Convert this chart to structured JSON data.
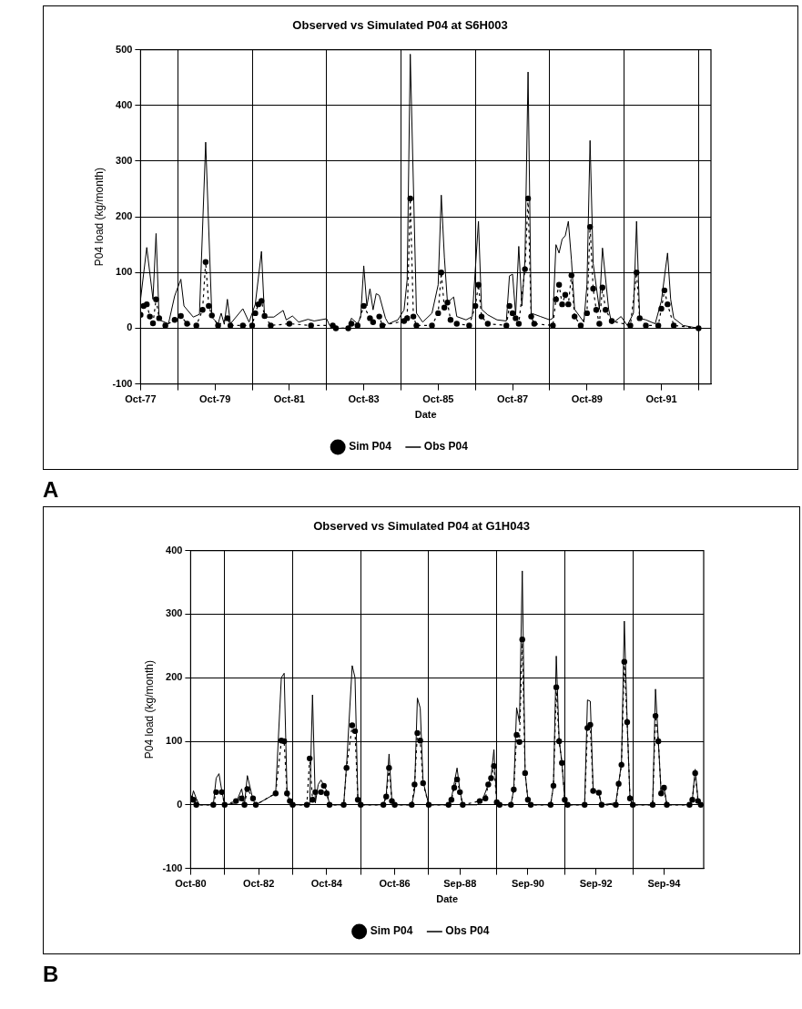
{
  "chart_data": [
    {
      "type": "line",
      "title": "Observed vs Simulated P04 at S6H003",
      "xlabel": "Date",
      "ylabel": "P04 load (kg/month)",
      "annotations": [
        "A"
      ],
      "xlim": [
        "1977-10",
        "1993-02"
      ],
      "xticks": [
        {
          "value": "1977-10",
          "label": "Oct-77"
        },
        {
          "value": "1978-10",
          "label": null
        },
        {
          "value": "1979-10",
          "label": "Oct-79"
        },
        {
          "value": "1980-10",
          "label": null
        },
        {
          "value": "1981-10",
          "label": "Oct-81"
        },
        {
          "value": "1982-10",
          "label": null
        },
        {
          "value": "1983-10",
          "label": "Oct-83"
        },
        {
          "value": "1984-10",
          "label": null
        },
        {
          "value": "1985-10",
          "label": "Oct-85"
        },
        {
          "value": "1986-10",
          "label": null
        },
        {
          "value": "1987-10",
          "label": "Oct-87"
        },
        {
          "value": "1988-10",
          "label": null
        },
        {
          "value": "1989-10",
          "label": "Oct-89"
        },
        {
          "value": "1990-10",
          "label": null
        },
        {
          "value": "1991-10",
          "label": "Oct-91"
        },
        {
          "value": "1992-10",
          "label": null
        }
      ],
      "ylim": [
        -100,
        500
      ],
      "yticks": [
        -100,
        0,
        100,
        200,
        300,
        400,
        500
      ],
      "grid": true,
      "legend": "bottom",
      "series": [
        {
          "name": "Sim P04",
          "color": "#000000",
          "marker": "circle",
          "line_style": "dashed",
          "x": [
            "1977-10",
            "1977-11",
            "1977-12",
            "1978-01",
            "1978-02",
            "1978-03",
            "1978-04",
            "1978-06",
            "1978-09",
            "1978-11",
            "1979-01",
            "1979-04",
            "1979-06",
            "1979-07",
            "1979-08",
            "1979-09",
            "1979-11",
            "1980-02",
            "1980-03",
            "1980-07",
            "1980-10",
            "1980-11",
            "1980-12",
            "1981-01",
            "1981-02",
            "1981-04",
            "1981-10",
            "1982-05",
            "1982-12",
            "1983-01",
            "1983-05",
            "1983-06",
            "1983-08",
            "1983-10",
            "1983-12",
            "1984-01",
            "1984-03",
            "1984-04",
            "1984-11",
            "1984-12",
            "1985-01",
            "1985-02",
            "1985-03",
            "1985-08",
            "1985-10",
            "1985-11",
            "1985-12",
            "1986-01",
            "1986-02",
            "1986-04",
            "1986-08",
            "1986-10",
            "1986-11",
            "1986-12",
            "1987-02",
            "1987-08",
            "1987-09",
            "1987-10",
            "1987-11",
            "1987-12",
            "1988-02",
            "1988-03",
            "1988-04",
            "1988-05",
            "1988-11",
            "1988-12",
            "1989-01",
            "1989-02",
            "1989-03",
            "1989-04",
            "1989-05",
            "1989-06",
            "1989-08",
            "1989-10",
            "1989-11",
            "1989-12",
            "1990-01",
            "1990-02",
            "1990-03",
            "1990-04",
            "1990-06",
            "1990-12",
            "1991-02",
            "1991-03",
            "1991-05",
            "1991-09",
            "1991-10",
            "1991-11",
            "1991-12",
            "1992-02",
            "1992-10"
          ],
          "values": [
            24,
            40,
            43,
            21,
            9,
            52,
            18,
            5,
            15,
            22,
            8,
            5,
            33,
            119,
            40,
            23,
            5,
            18,
            5,
            5,
            5,
            27,
            43,
            49,
            22,
            5,
            8,
            5,
            5,
            0,
            0,
            8,
            5,
            40,
            18,
            11,
            21,
            5,
            13,
            18,
            233,
            21,
            5,
            5,
            27,
            100,
            37,
            46,
            15,
            8,
            5,
            40,
            78,
            21,
            8,
            5,
            40,
            27,
            18,
            8,
            106,
            233,
            21,
            8,
            5,
            52,
            78,
            43,
            60,
            43,
            95,
            21,
            5,
            27,
            182,
            71,
            33,
            8,
            73,
            33,
            13,
            5,
            100,
            18,
            5,
            5,
            35,
            68,
            43,
            5,
            0
          ]
        },
        {
          "name": "Obs P04",
          "color": "#000000",
          "marker": "none",
          "line_style": "solid",
          "x": [
            "1977-10",
            "1977-12",
            "1978-02",
            "1978-03",
            "1978-04",
            "1978-07",
            "1978-09",
            "1978-11",
            "1978-12",
            "1979-03",
            "1979-05",
            "1979-07",
            "1979-09",
            "1979-11",
            "1979-12",
            "1980-01",
            "1980-02",
            "1980-03",
            "1980-07",
            "1980-09",
            "1980-10",
            "1980-11",
            "1981-01",
            "1981-02",
            "1981-05",
            "1981-08",
            "1981-09",
            "1981-11",
            "1982-01",
            "1982-04",
            "1982-06",
            "1982-10",
            "1982-11",
            "1983-01",
            "1983-05",
            "1983-06",
            "1983-08",
            "1983-09",
            "1983-10",
            "1983-11",
            "1983-12",
            "1984-01",
            "1984-02",
            "1984-03",
            "1984-05",
            "1984-06",
            "1984-09",
            "1984-11",
            "1984-12",
            "1985-01",
            "1985-03",
            "1985-05",
            "1985-08",
            "1985-10",
            "1985-11",
            "1985-12",
            "1986-01",
            "1986-03",
            "1986-04",
            "1986-07",
            "1986-09",
            "1986-11",
            "1986-12",
            "1987-02",
            "1987-05",
            "1987-08",
            "1987-09",
            "1987-10",
            "1987-11",
            "1987-12",
            "1988-01",
            "1988-02",
            "1988-03",
            "1988-04",
            "1988-07",
            "1988-10",
            "1988-11",
            "1988-12",
            "1989-01",
            "1989-02",
            "1989-03",
            "1989-04",
            "1989-05",
            "1989-06",
            "1989-09",
            "1989-10",
            "1989-11",
            "1989-12",
            "1990-02",
            "1990-03",
            "1990-05",
            "1990-06",
            "1990-09",
            "1990-11",
            "1991-01",
            "1991-02",
            "1991-03",
            "1991-05",
            "1991-08",
            "1991-10",
            "1991-12",
            "1992-01",
            "1992-02",
            "1992-05",
            "1992-10"
          ],
          "values": [
            52,
            145,
            52,
            170,
            15,
            8,
            58,
            88,
            40,
            20,
            25,
            334,
            20,
            8,
            27,
            7,
            52,
            8,
            35,
            11,
            27,
            43,
            138,
            20,
            20,
            32,
            15,
            22,
            11,
            16,
            13,
            17,
            5,
            0,
            0,
            18,
            8,
            20,
            112,
            40,
            71,
            33,
            62,
            59,
            18,
            8,
            15,
            33,
            87,
            492,
            27,
            11,
            27,
            78,
            239,
            128,
            46,
            56,
            21,
            15,
            21,
            192,
            34,
            24,
            15,
            13,
            94,
            97,
            24,
            147,
            40,
            122,
            460,
            27,
            21,
            15,
            18,
            150,
            135,
            160,
            166,
            192,
            122,
            34,
            11,
            78,
            337,
            116,
            34,
            144,
            34,
            8,
            21,
            5,
            27,
            192,
            18,
            15,
            8,
            49,
            135,
            52,
            18,
            5,
            0
          ]
        }
      ]
    },
    {
      "type": "line",
      "title": "Observed vs Simulated P04 at G1H043",
      "xlabel": "Date",
      "ylabel": "P04 load (kg/month)",
      "annotations": [
        "B"
      ],
      "xlim": [
        "1980-10",
        "1995-11"
      ],
      "xticks": [
        {
          "value": "1980-10",
          "label": "Oct-80"
        },
        {
          "value": "1981-10",
          "label": null
        },
        {
          "value": "1982-10",
          "label": "Oct-82"
        },
        {
          "value": "1983-10",
          "label": null
        },
        {
          "value": "1984-10",
          "label": "Oct-84"
        },
        {
          "value": "1985-10",
          "label": null
        },
        {
          "value": "1986-10",
          "label": "Oct-86"
        },
        {
          "value": "1987-10",
          "label": null
        },
        {
          "value": "1988-09",
          "label": "Sep-88"
        },
        {
          "value": "1989-10",
          "label": null
        },
        {
          "value": "1990-09",
          "label": "Sep-90"
        },
        {
          "value": "1991-10",
          "label": null
        },
        {
          "value": "1992-09",
          "label": "Sep-92"
        },
        {
          "value": "1993-10",
          "label": null
        },
        {
          "value": "1994-09",
          "label": "Sep-94"
        }
      ],
      "ylim": [
        -100,
        400
      ],
      "yticks": [
        -100,
        0,
        100,
        200,
        300,
        400
      ],
      "grid": true,
      "legend": "bottom",
      "series": [
        {
          "name": "Sim P04",
          "color": "#000000",
          "marker": "circle",
          "line_style": "dashed",
          "x": [
            "1980-10",
            "1980-11",
            "1980-12",
            "1981-06",
            "1981-07",
            "1981-09",
            "1981-10",
            "1982-02",
            "1982-04",
            "1982-05",
            "1982-06",
            "1982-08",
            "1982-09",
            "1983-04",
            "1983-06",
            "1983-07",
            "1983-08",
            "1983-09",
            "1983-10",
            "1984-03",
            "1984-04",
            "1984-05",
            "1984-06",
            "1984-08",
            "1984-09",
            "1984-10",
            "1984-11",
            "1985-04",
            "1985-05",
            "1985-07",
            "1985-08",
            "1985-09",
            "1985-10",
            "1986-06",
            "1986-07",
            "1986-08",
            "1986-09",
            "1986-10",
            "1987-04",
            "1987-05",
            "1987-06",
            "1987-07",
            "1987-08",
            "1987-10",
            "1988-05",
            "1988-06",
            "1988-07",
            "1988-08",
            "1988-09",
            "1988-10",
            "1989-04",
            "1989-06",
            "1989-07",
            "1989-08",
            "1989-09",
            "1989-10",
            "1989-11",
            "1990-03",
            "1990-04",
            "1990-05",
            "1990-06",
            "1990-07",
            "1990-08",
            "1990-09",
            "1990-10",
            "1991-05",
            "1991-06",
            "1991-07",
            "1991-08",
            "1991-09",
            "1991-10",
            "1991-11",
            "1992-05",
            "1992-06",
            "1992-07",
            "1992-08",
            "1992-10",
            "1992-11",
            "1993-04",
            "1993-05",
            "1993-06",
            "1993-07",
            "1993-08",
            "1993-09",
            "1993-10",
            "1994-05",
            "1994-06",
            "1994-07",
            "1994-08",
            "1994-09",
            "1994-10",
            "1995-06",
            "1995-07",
            "1995-08",
            "1995-09",
            "1995-10"
          ],
          "values": [
            10,
            8,
            0,
            0,
            20,
            20,
            0,
            6,
            10,
            0,
            25,
            10,
            0,
            18,
            101,
            100,
            18,
            6,
            0,
            0,
            73,
            8,
            20,
            20,
            30,
            18,
            0,
            0,
            58,
            125,
            116,
            8,
            0,
            0,
            13,
            58,
            6,
            0,
            0,
            32,
            113,
            101,
            34,
            0,
            0,
            8,
            27,
            40,
            20,
            0,
            6,
            10,
            32,
            42,
            61,
            4,
            0,
            0,
            24,
            110,
            99,
            260,
            50,
            8,
            0,
            0,
            30,
            185,
            100,
            66,
            8,
            0,
            0,
            121,
            126,
            22,
            19,
            0,
            0,
            33,
            63,
            225,
            130,
            10,
            0,
            0,
            140,
            100,
            18,
            27,
            0,
            0,
            8,
            50,
            6,
            0
          ]
        },
        {
          "name": "Obs P04",
          "color": "#000000",
          "marker": "none",
          "line_style": "solid",
          "x": [
            "1980-10",
            "1980-11",
            "1980-12",
            "1981-01",
            "1981-06",
            "1981-07",
            "1981-08",
            "1981-09",
            "1981-10",
            "1982-02",
            "1982-04",
            "1982-05",
            "1982-06",
            "1982-08",
            "1982-09",
            "1983-04",
            "1983-06",
            "1983-07",
            "1983-08",
            "1983-09",
            "1983-10",
            "1984-04",
            "1984-05",
            "1984-06",
            "1984-07",
            "1984-08",
            "1984-10",
            "1984-11",
            "1985-04",
            "1985-05",
            "1985-07",
            "1985-08",
            "1985-09",
            "1985-10",
            "1986-06",
            "1986-07",
            "1986-08",
            "1986-09",
            "1986-10",
            "1987-04",
            "1987-05",
            "1987-06",
            "1987-07",
            "1987-08",
            "1987-10",
            "1988-05",
            "1988-06",
            "1988-08",
            "1988-09",
            "1988-10",
            "1989-03",
            "1989-05",
            "1989-07",
            "1989-08",
            "1989-09",
            "1989-10",
            "1989-11",
            "1990-03",
            "1990-04",
            "1990-05",
            "1990-06",
            "1990-07",
            "1990-08",
            "1990-09",
            "1990-10",
            "1991-05",
            "1991-06",
            "1991-07",
            "1991-08",
            "1991-09",
            "1991-10",
            "1991-11",
            "1992-05",
            "1992-06",
            "1992-07",
            "1992-08",
            "1992-10",
            "1992-11",
            "1993-04",
            "1993-05",
            "1993-06",
            "1993-07",
            "1993-08",
            "1993-09",
            "1993-10",
            "1994-05",
            "1994-06",
            "1994-07",
            "1994-08",
            "1994-09",
            "1994-10",
            "1995-06",
            "1995-07",
            "1995-08",
            "1995-09",
            "1995-10"
          ],
          "values": [
            3,
            22,
            10,
            0,
            0,
            42,
            49,
            22,
            0,
            3,
            25,
            1,
            46,
            8,
            0,
            18,
            200,
            207,
            22,
            3,
            0,
            0,
            173,
            3,
            32,
            39,
            22,
            0,
            0,
            61,
            219,
            200,
            8,
            0,
            0,
            15,
            80,
            6,
            0,
            0,
            22,
            168,
            152,
            37,
            0,
            0,
            10,
            58,
            22,
            0,
            0,
            8,
            32,
            44,
            87,
            3,
            0,
            0,
            25,
            153,
            130,
            368,
            51,
            8,
            0,
            0,
            30,
            234,
            103,
            65,
            8,
            0,
            0,
            165,
            163,
            25,
            18,
            0,
            3,
            34,
            65,
            289,
            132,
            10,
            0,
            0,
            182,
            101,
            18,
            27,
            0,
            0,
            8,
            56,
            8,
            0
          ]
        }
      ]
    }
  ]
}
